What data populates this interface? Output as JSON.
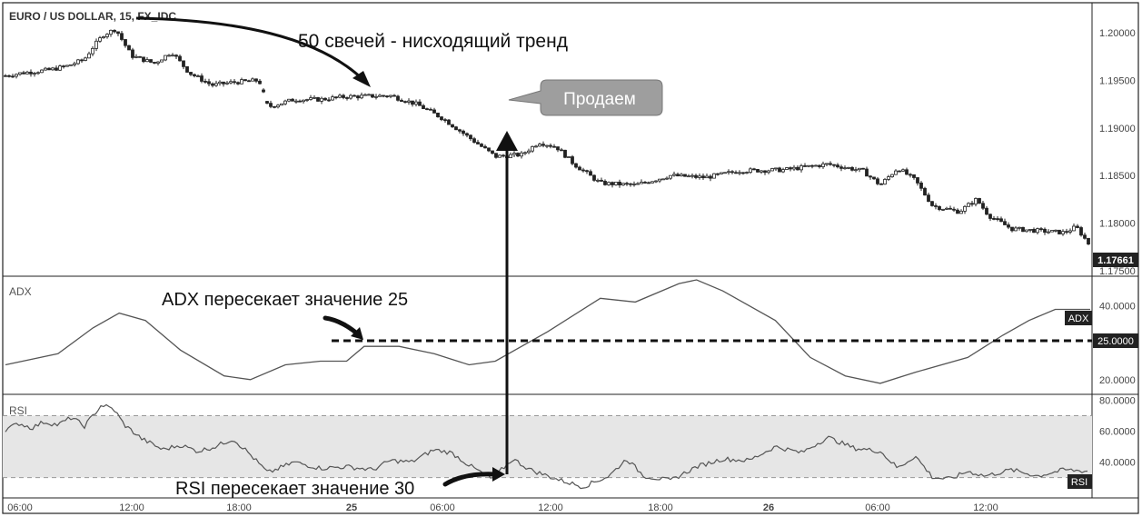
{
  "colors": {
    "background": "#ffffff",
    "rsi_band": "#e6e6e6",
    "candle": "#222222",
    "line": "#555555",
    "border": "#222222",
    "label_bg": "#222222",
    "callout_bg": "#9e9e9e"
  },
  "chart_data": [
    {
      "type": "candlestick",
      "title": "EURO / US DOLLAR, 15, FX_IDC",
      "x_ticks": [
        "06:00",
        "12:00",
        "18:00",
        "25",
        "06:00",
        "12:00",
        "18:00",
        "26",
        "06:00",
        "12:00"
      ],
      "y_ticks": [
        "1.20000",
        "1.19500",
        "1.19000",
        "1.18500",
        "1.18000",
        "1.17500"
      ],
      "ylim": [
        1.1748,
        1.2025
      ],
      "last_price": "1.17661",
      "close_path": [
        [
          0,
          1.1955
        ],
        [
          10,
          1.1958
        ],
        [
          25,
          1.1961
        ],
        [
          35,
          1.1965
        ],
        [
          45,
          1.1972
        ],
        [
          50,
          1.1985
        ],
        [
          56,
          1.1998
        ],
        [
          63,
          1.2004
        ],
        [
          72,
          1.1976
        ],
        [
          85,
          1.1968
        ],
        [
          95,
          1.198
        ],
        [
          105,
          1.1958
        ],
        [
          118,
          1.1945
        ],
        [
          130,
          1.1948
        ],
        [
          145,
          1.195
        ],
        [
          150,
          1.1922
        ],
        [
          165,
          1.193
        ],
        [
          180,
          1.193
        ],
        [
          195,
          1.1933
        ],
        [
          220,
          1.1934
        ],
        [
          235,
          1.1925
        ],
        [
          250,
          1.191
        ],
        [
          265,
          1.189
        ],
        [
          280,
          1.187
        ],
        [
          295,
          1.1872
        ],
        [
          305,
          1.1885
        ],
        [
          315,
          1.188
        ],
        [
          325,
          1.1862
        ],
        [
          340,
          1.1842
        ],
        [
          360,
          1.184
        ],
        [
          380,
          1.185
        ],
        [
          400,
          1.1848
        ],
        [
          420,
          1.1855
        ],
        [
          445,
          1.1856
        ],
        [
          470,
          1.1862
        ],
        [
          490,
          1.1855
        ],
        [
          500,
          1.184
        ],
        [
          510,
          1.1858
        ],
        [
          520,
          1.1845
        ],
        [
          530,
          1.1818
        ],
        [
          545,
          1.1812
        ],
        [
          555,
          1.1825
        ],
        [
          562,
          1.1808
        ],
        [
          575,
          1.1794
        ],
        [
          590,
          1.1792
        ],
        [
          605,
          1.179
        ],
        [
          612,
          1.1796
        ],
        [
          620,
          1.1776
        ]
      ],
      "gap_after_index": 14
    },
    {
      "type": "line",
      "title": "ADX",
      "y_ticks": [
        "40.0000",
        "20.0000"
      ],
      "ylim": [
        17,
        47
      ],
      "series_label": "ADX",
      "level_label": "25.0000",
      "level": 25,
      "values": [
        [
          0,
          24
        ],
        [
          30,
          27
        ],
        [
          50,
          34
        ],
        [
          65,
          38
        ],
        [
          80,
          36
        ],
        [
          100,
          28
        ],
        [
          125,
          21
        ],
        [
          140,
          20
        ],
        [
          160,
          24
        ],
        [
          180,
          25
        ],
        [
          195,
          25
        ],
        [
          205,
          29
        ],
        [
          225,
          29
        ],
        [
          245,
          27
        ],
        [
          265,
          24
        ],
        [
          280,
          25
        ],
        [
          310,
          33
        ],
        [
          340,
          42
        ],
        [
          360,
          41
        ],
        [
          385,
          46
        ],
        [
          395,
          47
        ],
        [
          410,
          44
        ],
        [
          440,
          36
        ],
        [
          460,
          26
        ],
        [
          480,
          21
        ],
        [
          500,
          19
        ],
        [
          520,
          22
        ],
        [
          550,
          26
        ],
        [
          570,
          32
        ],
        [
          585,
          36
        ],
        [
          600,
          39
        ],
        [
          620,
          39
        ]
      ]
    },
    {
      "type": "line",
      "title": "RSI",
      "y_ticks": [
        "80.0000",
        "60.0000",
        "40.0000"
      ],
      "ylim": [
        18,
        82
      ],
      "band": [
        30,
        70
      ],
      "series_label": "RSI",
      "values": [
        [
          0,
          61
        ],
        [
          8,
          65
        ],
        [
          15,
          62
        ],
        [
          22,
          66
        ],
        [
          30,
          64
        ],
        [
          38,
          69
        ],
        [
          45,
          63
        ],
        [
          55,
          77
        ],
        [
          62,
          74
        ],
        [
          68,
          64
        ],
        [
          78,
          55
        ],
        [
          90,
          48
        ],
        [
          100,
          51
        ],
        [
          110,
          47
        ],
        [
          120,
          50
        ],
        [
          130,
          55
        ],
        [
          138,
          47
        ],
        [
          150,
          33
        ],
        [
          165,
          40
        ],
        [
          180,
          36
        ],
        [
          195,
          37
        ],
        [
          210,
          35
        ],
        [
          220,
          41
        ],
        [
          232,
          40
        ],
        [
          245,
          48
        ],
        [
          255,
          46
        ],
        [
          265,
          38
        ],
        [
          278,
          29
        ],
        [
          290,
          42
        ],
        [
          300,
          35
        ],
        [
          315,
          29
        ],
        [
          330,
          24
        ],
        [
          345,
          31
        ],
        [
          355,
          42
        ],
        [
          365,
          31
        ],
        [
          380,
          28
        ],
        [
          395,
          37
        ],
        [
          410,
          42
        ],
        [
          425,
          41
        ],
        [
          440,
          50
        ],
        [
          455,
          46
        ],
        [
          470,
          56
        ],
        [
          485,
          49
        ],
        [
          500,
          47
        ],
        [
          510,
          36
        ],
        [
          520,
          44
        ],
        [
          530,
          30
        ],
        [
          540,
          29
        ],
        [
          550,
          34
        ],
        [
          560,
          31
        ],
        [
          575,
          35
        ],
        [
          590,
          31
        ],
        [
          605,
          35
        ],
        [
          620,
          34
        ]
      ]
    }
  ],
  "annotations": {
    "trend": "50 свечей - нисходящий тренд",
    "sell": "Продаем",
    "adx_cross": "ADX пересекает значение 25",
    "rsi_cross": "RSI пересекает значение 30"
  }
}
